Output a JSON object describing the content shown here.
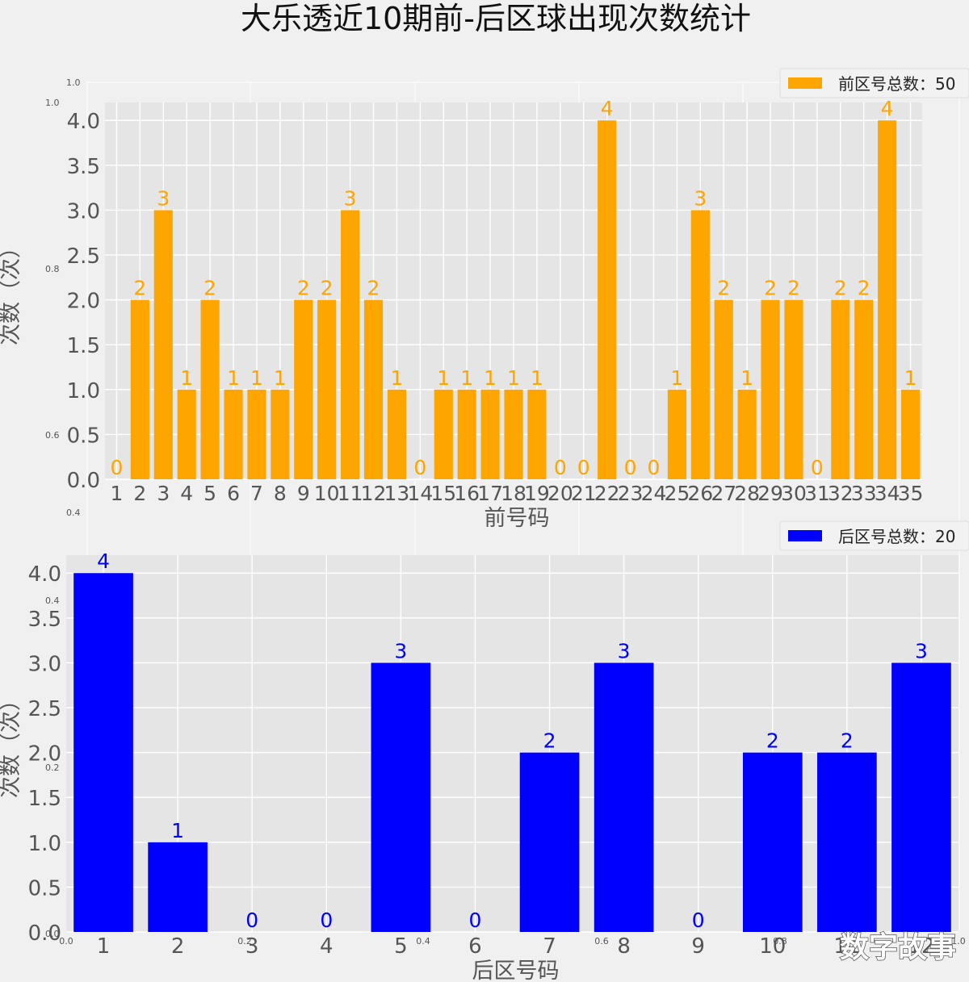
{
  "figure": {
    "title": "大乐透近10期前-后区球出现次数统计",
    "watermark": "数字故事"
  },
  "colors": {
    "background": "#f0f0f0",
    "axes_bg": "#e5e5e5",
    "grid": "#ffffff",
    "front": "#ffa500",
    "back": "#0000ff",
    "tick_text": "#555555"
  },
  "stray_axis_ticks": {
    "top": [
      "1.0",
      "1.0",
      "0.8",
      "0.6",
      "0.4",
      "0.4",
      "0.2",
      "0.0"
    ],
    "bottom": [
      "0.0",
      "0.2",
      "0.4",
      "0.6",
      "0.8",
      "1.0"
    ]
  },
  "chart_data": [
    {
      "type": "bar",
      "categories": [
        "1",
        "2",
        "3",
        "4",
        "5",
        "6",
        "7",
        "8",
        "9",
        "10",
        "11",
        "12",
        "13",
        "14",
        "15",
        "16",
        "17",
        "18",
        "19",
        "20",
        "21",
        "22",
        "23",
        "24",
        "25",
        "26",
        "27",
        "28",
        "29",
        "30",
        "31",
        "32",
        "33",
        "34",
        "35"
      ],
      "values": [
        0,
        2,
        3,
        1,
        2,
        1,
        1,
        1,
        2,
        2,
        3,
        2,
        1,
        0,
        1,
        1,
        1,
        1,
        1,
        0,
        0,
        4,
        0,
        0,
        1,
        3,
        2,
        1,
        2,
        2,
        0,
        2,
        2,
        4,
        1
      ],
      "series": [
        {
          "name": "前区号总数：50",
          "color": "#ffa500"
        }
      ],
      "xlabel": "前号码",
      "ylabel": "次数（次）",
      "yticks": [
        "0.0",
        "0.5",
        "1.0",
        "1.5",
        "2.0",
        "2.5",
        "3.0",
        "3.5",
        "4.0"
      ],
      "ylim": [
        0,
        4.2
      ],
      "grid": true,
      "legend": "top-right"
    },
    {
      "type": "bar",
      "categories": [
        "1",
        "2",
        "3",
        "4",
        "5",
        "6",
        "7",
        "8",
        "9",
        "10",
        "11",
        "12"
      ],
      "values": [
        4,
        1,
        0,
        0,
        3,
        0,
        2,
        3,
        0,
        2,
        2,
        3
      ],
      "series": [
        {
          "name": "后区号总数：20",
          "color": "#0000ff"
        }
      ],
      "xlabel": "后区号码",
      "ylabel": "次数（次）",
      "yticks": [
        "0.0",
        "0.5",
        "1.0",
        "1.5",
        "2.0",
        "2.5",
        "3.0",
        "3.5",
        "4.0"
      ],
      "ylim": [
        0,
        4.2
      ],
      "grid": true,
      "legend": "top-right"
    }
  ]
}
